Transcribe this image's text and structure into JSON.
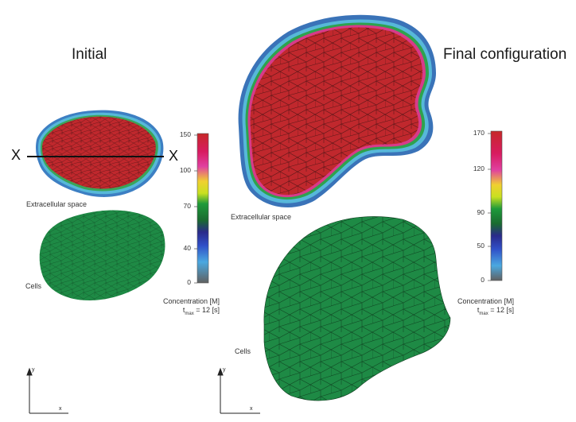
{
  "left_panel": {
    "title": "Initial",
    "extracellular_label": "Extracellular space",
    "cells_label": "Cells",
    "section_left": "X",
    "section_right": "X",
    "colorbar": {
      "ticks": [
        "150",
        "100",
        "70",
        "40",
        "0"
      ],
      "title": "Concentration [M]",
      "tmax_t": "t",
      "tmax_sub": "max",
      "tmax_rest": " = 12 [s]"
    },
    "axes": {
      "x": "x",
      "y": "y"
    }
  },
  "right_panel": {
    "title": "Final configuration",
    "extracellular_label": "Extracellular space",
    "cells_label": "Cells",
    "colorbar": {
      "ticks": [
        "170",
        "120",
        "90",
        "50",
        "0"
      ],
      "title": "Concentration [M]",
      "tmax_t": "t",
      "tmax_sub": "max",
      "tmax_rest": " = 12 [s]"
    },
    "axes": {
      "x": "x",
      "y": "y"
    }
  },
  "colors": {
    "concentration_high": "#c0282d",
    "cells_fill": "#1e8a45",
    "mesh_line": "#2a1414",
    "boundary_outer": "#3f7fc0",
    "boundary_mid": "#55b8d8"
  }
}
